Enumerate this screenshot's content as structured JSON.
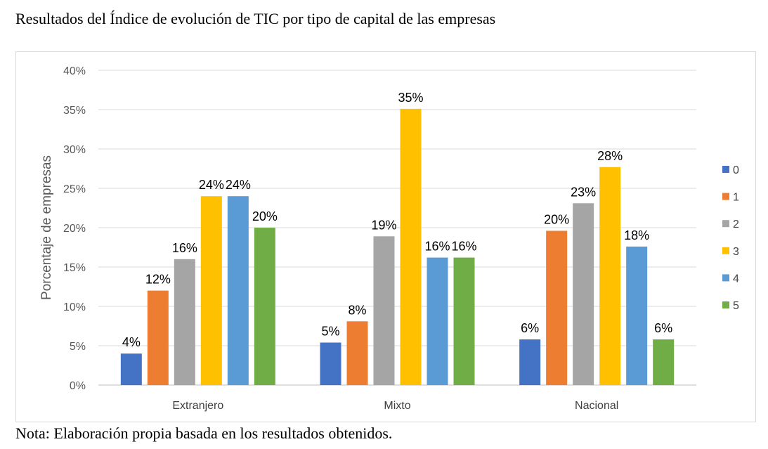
{
  "caption": "Resultados del Índice de evolución de TIC por tipo de capital de las empresas",
  "note": "Nota: Elaboración propia basada en los resultados obtenidos.",
  "chart_data": {
    "type": "bar",
    "title": "Resultados del Índice de evolución de TIC por tipo de capital de las empresas",
    "xlabel": "",
    "ylabel": "Porcentaje de empresas",
    "ylim": [
      0,
      40
    ],
    "yticks": [
      0,
      5,
      10,
      15,
      20,
      25,
      30,
      35,
      40
    ],
    "ytick_labels": [
      "0%",
      "5%",
      "10%",
      "15%",
      "20%",
      "25%",
      "30%",
      "35%",
      "40%"
    ],
    "categories": [
      "Extranjero",
      "Mixto",
      "Nacional"
    ],
    "grid": true,
    "legend_position": "right",
    "series": [
      {
        "name": "0",
        "color": "#4472c4",
        "values": [
          4,
          5.4,
          5.8
        ],
        "labels": [
          "4%",
          "5%",
          "6%"
        ]
      },
      {
        "name": "1",
        "color": "#ed7d31",
        "values": [
          12,
          8.1,
          19.6
        ],
        "labels": [
          "12%",
          "8%",
          "20%"
        ]
      },
      {
        "name": "2",
        "color": "#a5a5a5",
        "values": [
          16,
          18.9,
          23.1
        ],
        "labels": [
          "16%",
          "19%",
          "23%"
        ]
      },
      {
        "name": "3",
        "color": "#ffc000",
        "values": [
          24,
          35.1,
          27.7
        ],
        "labels": [
          "24%",
          "35%",
          "28%"
        ]
      },
      {
        "name": "4",
        "color": "#5b9bd5",
        "values": [
          24,
          16.2,
          17.6
        ],
        "labels": [
          "24%",
          "16%",
          "18%"
        ]
      },
      {
        "name": "5",
        "color": "#70ad47",
        "values": [
          20,
          16.2,
          5.8
        ],
        "labels": [
          "20%",
          "16%",
          "6%"
        ]
      }
    ]
  }
}
